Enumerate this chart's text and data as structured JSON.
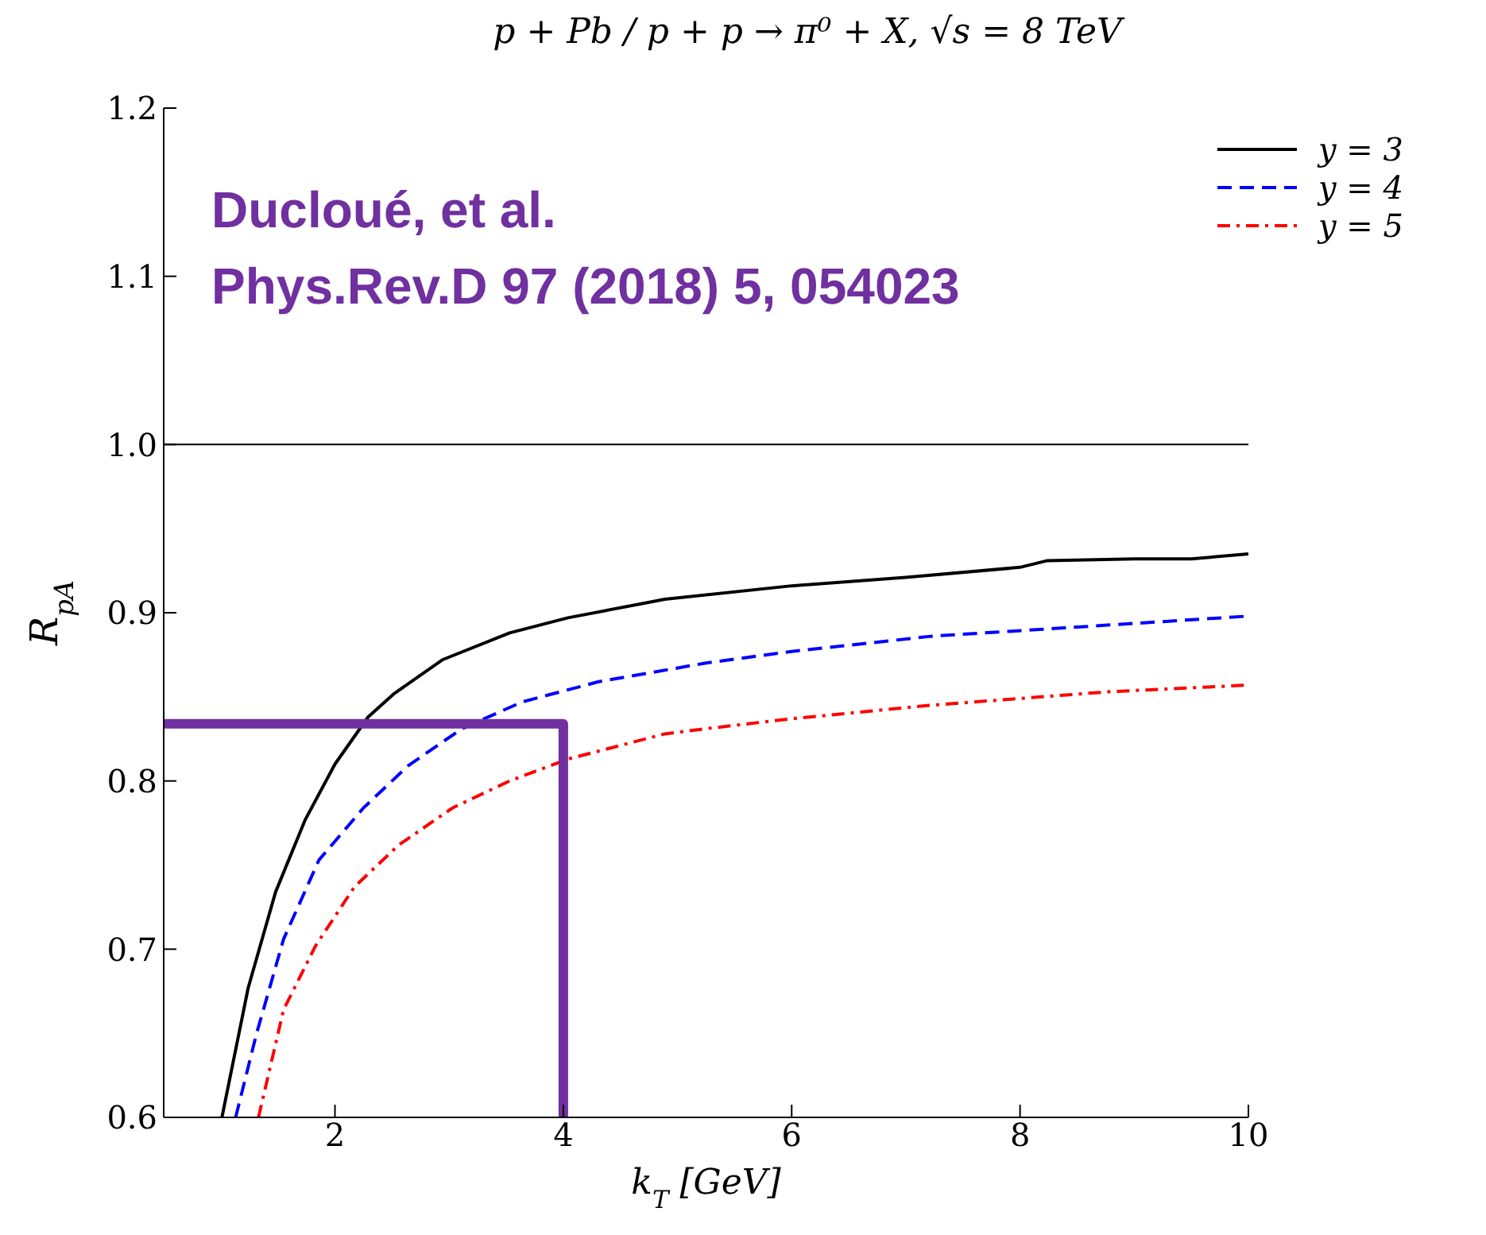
{
  "chart_data": {
    "type": "line",
    "title": "p + Pb / p + p → π⁰ + X, √s = 8 TeV",
    "xlabel": "k$_{T}$ [GeV]",
    "ylabel": "R$_{pA}$",
    "xlim": [
      0.5,
      10
    ],
    "xticks": [
      2,
      4,
      6,
      8,
      10
    ],
    "ylim": [
      0.6,
      1.2
    ],
    "yticks": [
      {
        "value": 0.6,
        "label": "0.6"
      },
      {
        "value": 0.7,
        "label": "0.7"
      },
      {
        "value": 0.8,
        "label": "0.8"
      },
      {
        "value": 0.9,
        "label": "0.9"
      },
      {
        "value": 1.0,
        "label": "1.0"
      },
      {
        "value": 1.1,
        "label": "1.1"
      },
      {
        "value": 1.2,
        "label": "1.2"
      }
    ],
    "grid": false,
    "legend": "top right",
    "marker": "none",
    "ref_lines": [
      {
        "axis": "y",
        "value": 1.0,
        "color": "#000000",
        "line_style": "solid"
      }
    ],
    "annotations": [
      "Ducloué, et al.",
      "Phys.Rev.D 97 (2018) 5, 054023"
    ],
    "series": [
      {
        "name": "y = 3",
        "color": "#000000",
        "line_style": "solid",
        "x": [
          1.01,
          1.24,
          1.48,
          1.74,
          2.0,
          2.29,
          2.52,
          2.94,
          3.53,
          4.04,
          4.89,
          6.0,
          7.0,
          8.0,
          8.24,
          9.0,
          9.5,
          10.0
        ],
        "values": [
          0.6,
          0.677,
          0.734,
          0.777,
          0.81,
          0.838,
          0.852,
          0.872,
          0.888,
          0.897,
          0.908,
          0.916,
          0.921,
          0.927,
          0.931,
          0.932,
          0.932,
          0.935
        ]
      },
      {
        "name": "y = 4",
        "color": "#0000ff",
        "line_style": "dashed",
        "x": [
          1.13,
          1.31,
          1.55,
          1.86,
          2.25,
          2.64,
          3.11,
          3.64,
          4.31,
          5.24,
          6.0,
          7.22,
          8.39,
          10.0
        ],
        "values": [
          0.6,
          0.649,
          0.706,
          0.753,
          0.784,
          0.809,
          0.831,
          0.847,
          0.859,
          0.87,
          0.877,
          0.886,
          0.891,
          0.898
        ]
      },
      {
        "name": "y = 5",
        "color": "#ff0000",
        "line_style": "dotted",
        "x": [
          1.33,
          1.55,
          1.83,
          2.17,
          2.56,
          3.03,
          3.53,
          4.04,
          4.89,
          5.24,
          6.0,
          7.22,
          8.77,
          10.0
        ],
        "values": [
          0.6,
          0.664,
          0.702,
          0.737,
          0.762,
          0.784,
          0.8,
          0.813,
          0.828,
          0.831,
          0.837,
          0.845,
          0.853,
          0.857
        ]
      },
      {
        "color": "#7030a0",
        "line_style": "solid",
        "x": [
          0.5,
          4.0,
          4.0
        ],
        "values": [
          0.834,
          0.834,
          0.6
        ]
      }
    ]
  }
}
